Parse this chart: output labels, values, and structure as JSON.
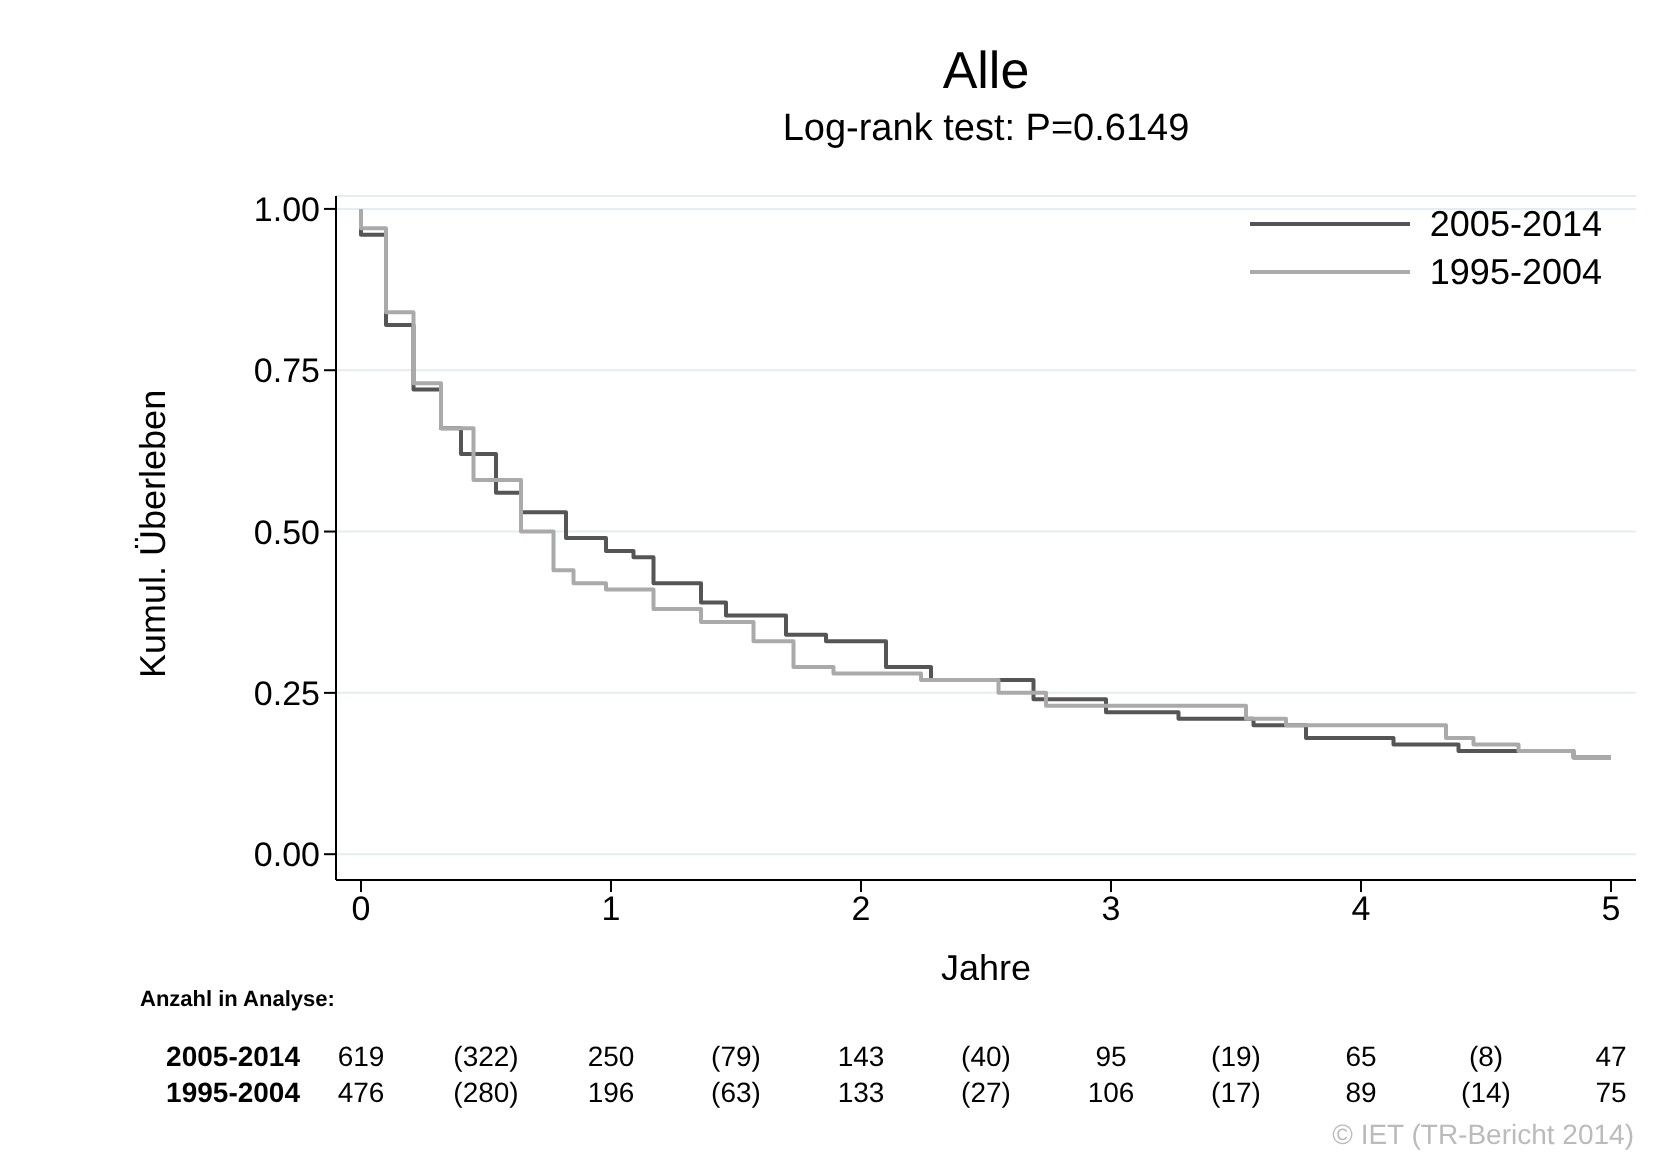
{
  "chart_data": {
    "type": "step",
    "title": "Alle",
    "subtitle": "Log-rank test: P=0.6149",
    "xlabel": "Jahre",
    "ylabel": "Kumul. Überleben",
    "xlim": [
      -0.1,
      5.1
    ],
    "xticks": [
      0,
      1,
      2,
      3,
      4,
      5
    ],
    "ylim": [
      -0.04,
      1.02
    ],
    "yticks": [
      {
        "value": 0,
        "label": "0.00"
      },
      {
        "value": 0.25,
        "label": "0.25"
      },
      {
        "value": 0.5,
        "label": "0.50"
      },
      {
        "value": 0.75,
        "label": "0.75"
      },
      {
        "value": 1,
        "label": "1.00"
      }
    ],
    "grid": "y",
    "legend": "top right",
    "marker": "none",
    "line_style": "solid",
    "series": [
      {
        "name": "2005-2014",
        "color": "#555555",
        "x": [
          0,
          0,
          0.1,
          0.21,
          0.32,
          0.4,
          0.54,
          0.64,
          0.82,
          0.98,
          1.09,
          1.17,
          1.36,
          1.46,
          1.7,
          1.86,
          2.1,
          2.28,
          2.55,
          2.69,
          2.98,
          3.27,
          3.57,
          3.78,
          4.13,
          4.39,
          4.66,
          4.85,
          5.0
        ],
        "values": [
          1.0,
          0.96,
          0.82,
          0.72,
          0.66,
          0.62,
          0.56,
          0.53,
          0.49,
          0.47,
          0.46,
          0.42,
          0.39,
          0.37,
          0.34,
          0.33,
          0.29,
          0.27,
          0.27,
          0.24,
          0.22,
          0.21,
          0.2,
          0.18,
          0.17,
          0.16,
          0.16,
          0.15,
          0.15
        ]
      },
      {
        "name": "1995-2004",
        "color": "#aaaaaa",
        "x": [
          0,
          0,
          0.1,
          0.21,
          0.32,
          0.45,
          0.64,
          0.77,
          0.85,
          0.98,
          1.17,
          1.36,
          1.57,
          1.73,
          1.89,
          2.24,
          2.55,
          2.74,
          2.98,
          3.54,
          3.7,
          4.34,
          4.45,
          4.63,
          4.85,
          5.0
        ],
        "values": [
          1.0,
          0.97,
          0.84,
          0.73,
          0.66,
          0.58,
          0.5,
          0.44,
          0.42,
          0.41,
          0.38,
          0.36,
          0.33,
          0.29,
          0.28,
          0.27,
          0.25,
          0.23,
          0.23,
          0.21,
          0.2,
          0.18,
          0.17,
          0.16,
          0.15,
          0.15
        ]
      }
    ],
    "annotations": [
      "Anzahl in Analyse:",
      "2005-2014",
      "619",
      "(322)",
      "250",
      "(79)",
      "143",
      "(40)",
      "95",
      "(19)",
      "65",
      "(8)",
      "47",
      "1995-2004",
      "476",
      "(280)",
      "196",
      "(63)",
      "133",
      "(27)",
      "106",
      "(17)",
      "89",
      "(14)",
      "75",
      "© IET (TR-Bericht 2014)"
    ]
  }
}
